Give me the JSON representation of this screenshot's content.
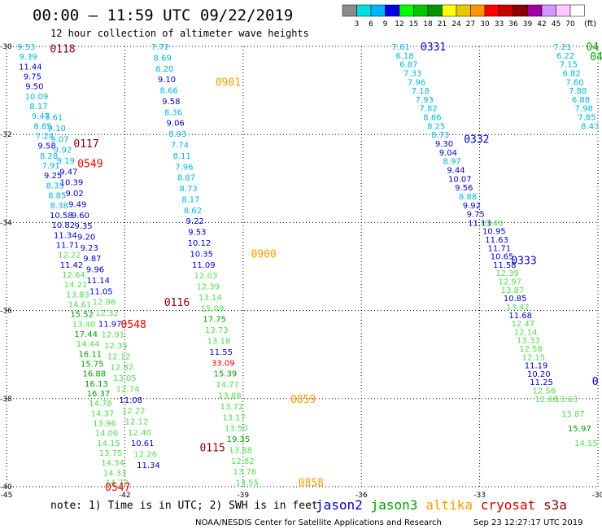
{
  "header": {
    "title": "00:00 – 11:59 UTC 09/22/2019",
    "subtitle": "12 hour collection of altimeter wave heights"
  },
  "colorbar": {
    "unit": "(ft)",
    "colors": [
      "#8c8c8c",
      "#00e0e0",
      "#00b4ff",
      "#0000e6",
      "#00ff00",
      "#00c800",
      "#009600",
      "#ffff00",
      "#e6c800",
      "#ff9600",
      "#ff0000",
      "#c80000",
      "#8c0000",
      "#a000a0",
      "#d296ff",
      "#ffc8ff",
      "#ffffff"
    ],
    "ticks": [
      "3",
      "6",
      "9",
      "12",
      "15",
      "18",
      "21",
      "24",
      "27",
      "30",
      "33",
      "36",
      "39",
      "42",
      "45",
      "70"
    ]
  },
  "footer": {
    "note": "note:  1) Time is in UTC;  2) SWH is in feet",
    "legend": [
      {
        "name": "jason2",
        "color": "#0000c8"
      },
      {
        "name": "jason3",
        "color": "#00a000"
      },
      {
        "name": "altika",
        "color": "#ff9900"
      },
      {
        "name": "cryosat",
        "color": "#cc0000"
      },
      {
        "name": "s3a",
        "color": "#8b0000"
      }
    ],
    "credit": "NOAA/NESDIS Center for Satellite Applications and Research",
    "timestamp": "Sep 23 12:27:17 UTC 2019"
  },
  "chart_data": {
    "type": "scatter",
    "xlim": [
      -45,
      -30
    ],
    "ylim": [
      -40,
      -30
    ],
    "x_ticks": [
      "-45",
      "-42",
      "-39",
      "-36",
      "-33",
      "-30"
    ],
    "y_ticks": [
      "-30",
      "-32",
      "-34",
      "-36",
      "-38",
      "-40"
    ],
    "grid": true,
    "colors": {
      "darkblue": "#0000c8",
      "cyan": "#00b4dc",
      "green": "#00a000",
      "lightgreen": "#50dc50",
      "red": "#e60000",
      "maroon": "#8b0000",
      "orange": "#ff9900"
    },
    "tracks": [
      {
        "x0": -44.5,
        "y0": -30.0,
        "x1": -42.2,
        "y1": -39.9,
        "points": [
          [
            "9.53",
            "cyan"
          ],
          [
            "9.39",
            "cyan"
          ],
          [
            "11.44",
            "darkblue"
          ],
          [
            "9.75",
            "darkblue"
          ],
          [
            "9.50",
            "darkblue"
          ],
          [
            "10.09",
            "cyan"
          ],
          [
            "8.17",
            "cyan"
          ],
          [
            "9.47",
            "cyan"
          ],
          [
            "8.85",
            "cyan"
          ],
          [
            "7.24",
            "cyan"
          ],
          [
            "9.58",
            "darkblue"
          ],
          [
            "8.28",
            "cyan"
          ],
          [
            "7.91",
            "cyan"
          ],
          [
            "9.25",
            "darkblue"
          ],
          [
            "8.35",
            "cyan"
          ],
          [
            "8.85",
            "cyan"
          ],
          [
            "8.38",
            "cyan"
          ],
          [
            "10.58",
            "darkblue"
          ],
          [
            "10.82",
            "darkblue"
          ],
          [
            "11.34",
            "darkblue"
          ],
          [
            "11.71",
            "darkblue"
          ],
          [
            "12.22",
            "lightgreen"
          ],
          [
            "11.42",
            "darkblue"
          ],
          [
            "12.64",
            "lightgreen"
          ],
          [
            "14.21",
            "lightgreen"
          ],
          [
            "13.83",
            "lightgreen"
          ],
          [
            "14.61",
            "lightgreen"
          ],
          [
            "15.52",
            "green"
          ],
          [
            "13.40",
            "lightgreen"
          ],
          [
            "17.44",
            "green"
          ],
          [
            "14.44",
            "lightgreen"
          ],
          [
            "16.11",
            "green"
          ],
          [
            "15.75",
            "green"
          ],
          [
            "16.88",
            "green"
          ],
          [
            "16.13",
            "green"
          ],
          [
            "16.37",
            "green"
          ],
          [
            "14.78",
            "lightgreen"
          ],
          [
            "14.37",
            "lightgreen"
          ],
          [
            "13.96",
            "lightgreen"
          ],
          [
            "14.00",
            "lightgreen"
          ],
          [
            "14.15",
            "lightgreen"
          ],
          [
            "13.75",
            "lightgreen"
          ],
          [
            "14.34",
            "lightgreen"
          ],
          [
            "14.33",
            "lightgreen"
          ],
          [
            "14.72",
            "lightgreen"
          ]
        ]
      },
      {
        "x0": -43.8,
        "y0": -31.6,
        "x1": -41.4,
        "y1": -39.5,
        "points": [
          [
            "9.61",
            "cyan"
          ],
          [
            "9.10",
            "cyan"
          ],
          [
            "9.07",
            "cyan"
          ],
          [
            "9.92",
            "cyan"
          ],
          [
            "9.19",
            "cyan"
          ],
          [
            "9.47",
            "darkblue"
          ],
          [
            "10.39",
            "darkblue"
          ],
          [
            "9.02",
            "darkblue"
          ],
          [
            "9.49",
            "darkblue"
          ],
          [
            "9.60",
            "darkblue"
          ],
          [
            "9.35",
            "darkblue"
          ],
          [
            "9.20",
            "darkblue"
          ],
          [
            "9.23",
            "darkblue"
          ],
          [
            "9.87",
            "darkblue"
          ],
          [
            "9.96",
            "darkblue"
          ],
          [
            "11.14",
            "darkblue"
          ],
          [
            "11.05",
            "darkblue"
          ],
          [
            "12.96",
            "lightgreen"
          ],
          [
            "12.32",
            "lightgreen"
          ],
          [
            "11.97",
            "darkblue"
          ],
          [
            "12.91",
            "lightgreen"
          ],
          [
            "12.35",
            "lightgreen"
          ],
          [
            "12.12",
            "lightgreen"
          ],
          [
            "12.82",
            "lightgreen"
          ],
          [
            "13.05",
            "lightgreen"
          ],
          [
            "12.74",
            "lightgreen"
          ],
          [
            "11.08",
            "darkblue"
          ],
          [
            "12.22",
            "lightgreen"
          ],
          [
            "12.12",
            "lightgreen"
          ],
          [
            "12.40",
            "lightgreen"
          ],
          [
            "10.61",
            "darkblue"
          ],
          [
            "12.26",
            "lightgreen"
          ],
          [
            "11.34",
            "darkblue"
          ]
        ]
      },
      {
        "x0": -41.1,
        "y0": -30.0,
        "x1": -38.9,
        "y1": -39.9,
        "points": [
          [
            "7.72",
            "cyan"
          ],
          [
            "8.69",
            "cyan"
          ],
          [
            "8.20",
            "cyan"
          ],
          [
            "9.10",
            "darkblue"
          ],
          [
            "8.66",
            "cyan"
          ],
          [
            "9.58",
            "darkblue"
          ],
          [
            "8.36",
            "cyan"
          ],
          [
            "9.06",
            "darkblue"
          ],
          [
            "8.93",
            "cyan"
          ],
          [
            "7.74",
            "cyan"
          ],
          [
            "8.11",
            "cyan"
          ],
          [
            "7.96",
            "cyan"
          ],
          [
            "8.87",
            "cyan"
          ],
          [
            "8.73",
            "cyan"
          ],
          [
            "8.17",
            "cyan"
          ],
          [
            "8.62",
            "cyan"
          ],
          [
            "9.22",
            "darkblue"
          ],
          [
            "9.53",
            "darkblue"
          ],
          [
            "10.12",
            "darkblue"
          ],
          [
            "10.35",
            "darkblue"
          ],
          [
            "11.09",
            "darkblue"
          ],
          [
            "12.03",
            "lightgreen"
          ],
          [
            "12.39",
            "lightgreen"
          ],
          [
            "13.14",
            "lightgreen"
          ],
          [
            "15.09",
            "lightgreen"
          ],
          [
            "17.75",
            "green"
          ],
          [
            "13.73",
            "lightgreen"
          ],
          [
            "13.18",
            "lightgreen"
          ],
          [
            "11.55",
            "darkblue"
          ],
          [
            "33.09",
            "red"
          ],
          [
            "15.39",
            "green"
          ],
          [
            "14.77",
            "lightgreen"
          ],
          [
            "13.88",
            "lightgreen"
          ],
          [
            "13.72",
            "lightgreen"
          ],
          [
            "13.17",
            "lightgreen"
          ],
          [
            "13.50",
            "lightgreen"
          ],
          [
            "19.35",
            "green"
          ],
          [
            "13.88",
            "lightgreen"
          ],
          [
            "12.82",
            "lightgreen"
          ],
          [
            "13.76",
            "lightgreen"
          ],
          [
            "13.55",
            "lightgreen"
          ]
        ]
      },
      {
        "x0": -35.0,
        "y0": -30.0,
        "x1": -33.0,
        "y1": -34.0,
        "points": [
          [
            "7.61",
            "cyan"
          ],
          [
            "6.18",
            "cyan"
          ],
          [
            "6.87",
            "cyan"
          ],
          [
            "7.33",
            "cyan"
          ],
          [
            "7.96",
            "cyan"
          ],
          [
            "7.18",
            "cyan"
          ],
          [
            "7.93",
            "cyan"
          ],
          [
            "7.82",
            "cyan"
          ],
          [
            "8.66",
            "cyan"
          ],
          [
            "8.25",
            "cyan"
          ],
          [
            "8.73",
            "cyan"
          ],
          [
            "9.30",
            "darkblue"
          ],
          [
            "9.04",
            "darkblue"
          ],
          [
            "8.97",
            "cyan"
          ],
          [
            "9.44",
            "darkblue"
          ],
          [
            "10.07",
            "darkblue"
          ],
          [
            "9.56",
            "darkblue"
          ],
          [
            "8.88",
            "cyan"
          ],
          [
            "9.92",
            "darkblue"
          ],
          [
            "9.75",
            "darkblue"
          ],
          [
            "11.13",
            "darkblue"
          ]
        ]
      },
      {
        "x0": -32.7,
        "y0": -34.0,
        "x1": -31.3,
        "y1": -38.0,
        "points": [
          [
            "13.40",
            "lightgreen"
          ],
          [
            "10.95",
            "darkblue"
          ],
          [
            "11.63",
            "darkblue"
          ],
          [
            "11.71",
            "darkblue"
          ],
          [
            "10.65",
            "darkblue"
          ],
          [
            "11.58",
            "darkblue"
          ],
          [
            "12.39",
            "lightgreen"
          ],
          [
            "12.97",
            "lightgreen"
          ],
          [
            "13.87",
            "lightgreen"
          ],
          [
            "10.85",
            "darkblue"
          ],
          [
            "13.42",
            "lightgreen"
          ],
          [
            "11.68",
            "darkblue"
          ],
          [
            "12.47",
            "lightgreen"
          ],
          [
            "12.14",
            "lightgreen"
          ],
          [
            "13.33",
            "lightgreen"
          ],
          [
            "12.58",
            "lightgreen"
          ],
          [
            "12.15",
            "lightgreen"
          ],
          [
            "11.19",
            "darkblue"
          ],
          [
            "10.20",
            "darkblue"
          ],
          [
            "11.25",
            "darkblue"
          ],
          [
            "12.56",
            "lightgreen"
          ],
          [
            "12.68",
            "lightgreen"
          ]
        ]
      },
      {
        "x0": -30.8,
        "y0": -38.0,
        "x1": -30.3,
        "y1": -39.0,
        "points": [
          [
            "13.63",
            "lightgreen"
          ],
          [
            "13.87",
            "lightgreen"
          ],
          [
            "15.97",
            "green"
          ],
          [
            "14.15",
            "lightgreen"
          ]
        ]
      },
      {
        "x0": -30.9,
        "y0": -30.0,
        "x1": -30.2,
        "y1": -31.8,
        "points": [
          [
            "7.21",
            "cyan"
          ],
          [
            "6.22",
            "cyan"
          ],
          [
            "7.15",
            "cyan"
          ],
          [
            "6.82",
            "cyan"
          ],
          [
            "7.60",
            "cyan"
          ],
          [
            "7.88",
            "cyan"
          ],
          [
            "6.88",
            "cyan"
          ],
          [
            "7.98",
            "cyan"
          ],
          [
            "7.85",
            "cyan"
          ],
          [
            "8.43",
            "cyan"
          ]
        ]
      }
    ],
    "time_labels": [
      {
        "text": "0118",
        "x": -43.9,
        "y": -30.05,
        "color": "maroon"
      },
      {
        "text": "0117",
        "x": -43.3,
        "y": -32.2,
        "color": "maroon"
      },
      {
        "text": "0549",
        "x": -43.2,
        "y": -32.65,
        "color": "red"
      },
      {
        "text": "0116",
        "x": -41.0,
        "y": -35.8,
        "color": "maroon"
      },
      {
        "text": "0548",
        "x": -42.1,
        "y": -36.3,
        "color": "red"
      },
      {
        "text": "0115",
        "x": -40.1,
        "y": -39.1,
        "color": "maroon"
      },
      {
        "text": "0547",
        "x": -42.5,
        "y": -40.0,
        "color": "red"
      },
      {
        "text": "0901",
        "x": -39.7,
        "y": -30.8,
        "color": "orange"
      },
      {
        "text": "0900",
        "x": -38.8,
        "y": -34.7,
        "color": "orange"
      },
      {
        "text": "0859",
        "x": -37.8,
        "y": -38.0,
        "color": "orange"
      },
      {
        "text": "0858",
        "x": -37.6,
        "y": -39.9,
        "color": "orange"
      },
      {
        "text": "0331",
        "x": -34.5,
        "y": -30.0,
        "color": "darkblue"
      },
      {
        "text": "0332",
        "x": -33.4,
        "y": -32.1,
        "color": "darkblue"
      },
      {
        "text": "0333",
        "x": -32.2,
        "y": -34.85,
        "color": "darkblue"
      },
      {
        "text": "04",
        "x": -30.3,
        "y": -30.0,
        "color": "green"
      },
      {
        "text": "04",
        "x": -30.2,
        "y": -30.22,
        "color": "green"
      },
      {
        "text": "0",
        "x": -30.15,
        "y": -37.6,
        "color": "darkblue"
      }
    ]
  }
}
